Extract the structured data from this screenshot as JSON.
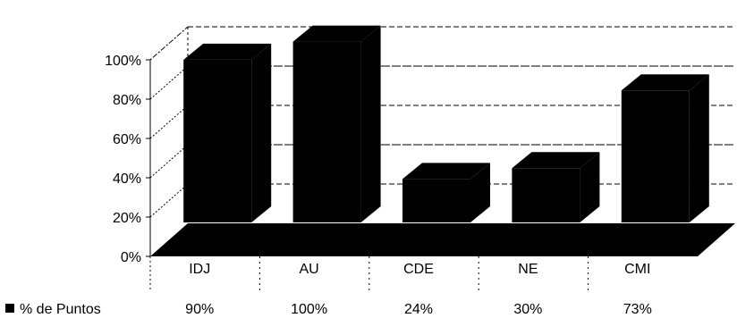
{
  "chart_data": {
    "type": "bar",
    "style": "3d-column-with-data-table",
    "categories": [
      "IDJ",
      "AU",
      "CDE",
      "NE",
      "CMI"
    ],
    "series": [
      {
        "name": "% de Puntos",
        "values": [
          90,
          100,
          24,
          30,
          73
        ]
      }
    ],
    "value_labels": [
      "90%",
      "100%",
      "24%",
      "30%",
      "73%"
    ],
    "y_ticks": [
      "0%",
      "20%",
      "40%",
      "60%",
      "80%",
      "100%"
    ],
    "ylim": [
      0,
      100
    ],
    "grid": true,
    "legend": "bottom-left in data table",
    "colors": {
      "bar": "#000000",
      "floor": "#000000",
      "grid": "#000000"
    }
  }
}
